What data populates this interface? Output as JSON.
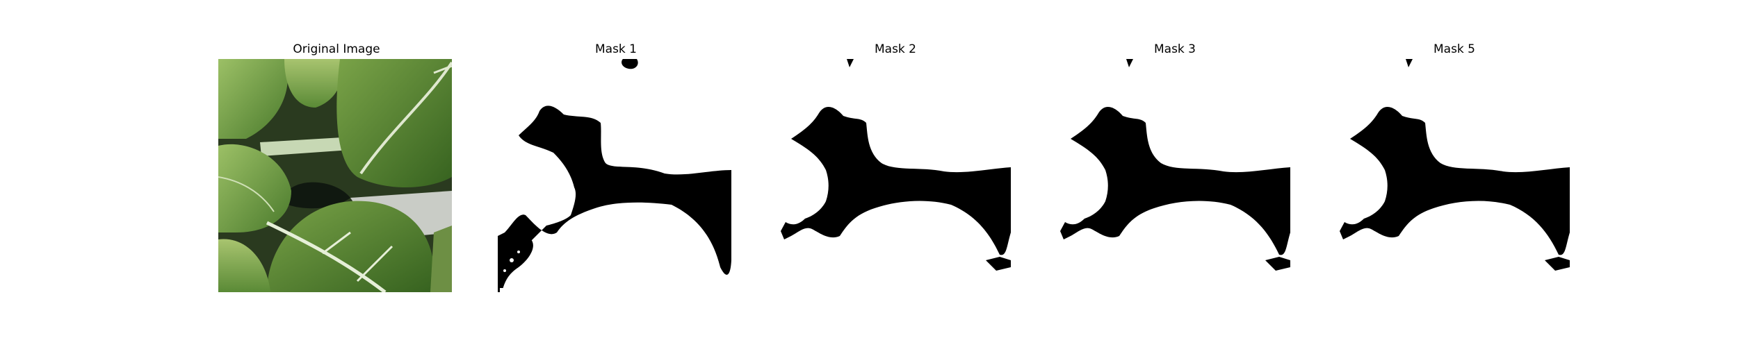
{
  "figure": {
    "panels": [
      {
        "title": "Original Image",
        "kind": "photo"
      },
      {
        "title": "Mask 1",
        "kind": "mask"
      },
      {
        "title": "Mask 2",
        "kind": "mask"
      },
      {
        "title": "Mask 3",
        "kind": "mask"
      },
      {
        "title": "Mask 5",
        "kind": "mask"
      }
    ],
    "colors": {
      "leaf_light": "#8fb45a",
      "leaf_mid": "#5f8f3a",
      "leaf_dark": "#3c6a26",
      "vein": "#dfe8cf",
      "shadow": "#1a2414",
      "mask_fg": "#ffffff",
      "mask_bg": "#000000"
    }
  }
}
